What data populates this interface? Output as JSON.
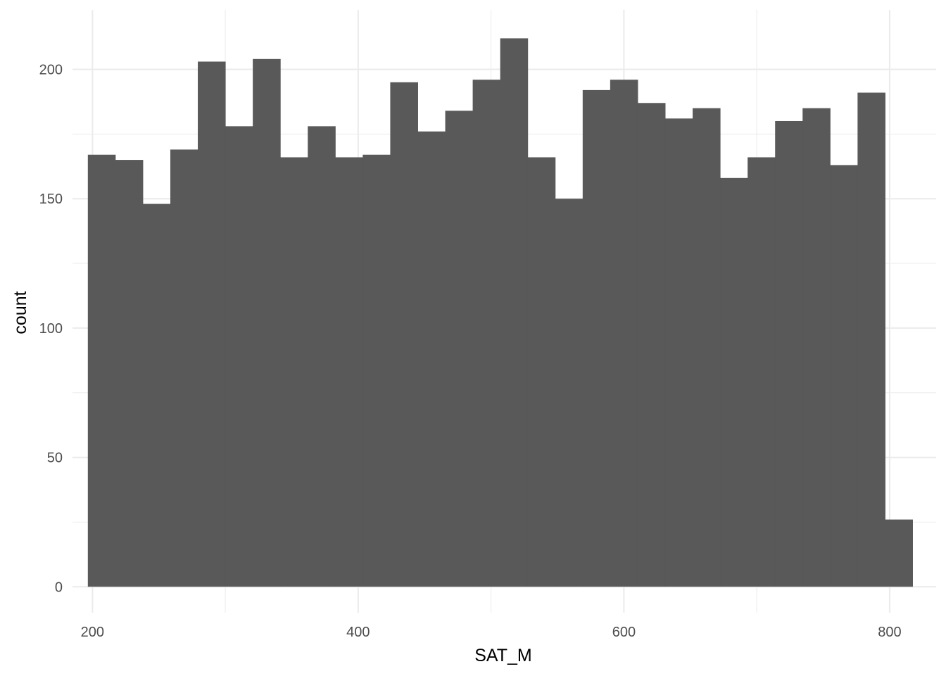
{
  "chart_data": {
    "type": "bar",
    "subtype": "histogram",
    "title": "",
    "xlabel": "SAT_M",
    "ylabel": "count",
    "xlim": [
      185,
      835
    ],
    "ylim": [
      -10,
      223
    ],
    "x_ticks": [
      200,
      400,
      600,
      800
    ],
    "x_minor_ticks": [
      300,
      500,
      700
    ],
    "y_ticks": [
      0,
      50,
      100,
      150,
      200
    ],
    "y_minor_ticks": [
      25,
      75,
      125,
      175
    ],
    "bin_width": 20.69,
    "bin_start": 196.55,
    "counts": [
      167,
      165,
      148,
      169,
      203,
      178,
      204,
      166,
      178,
      166,
      167,
      195,
      176,
      184,
      196,
      212,
      166,
      150,
      192,
      196,
      187,
      181,
      185,
      158,
      166,
      180,
      185,
      163,
      191,
      26
    ],
    "grid": true,
    "bar_color": "#595959",
    "grid_color": "#ebebeb"
  }
}
